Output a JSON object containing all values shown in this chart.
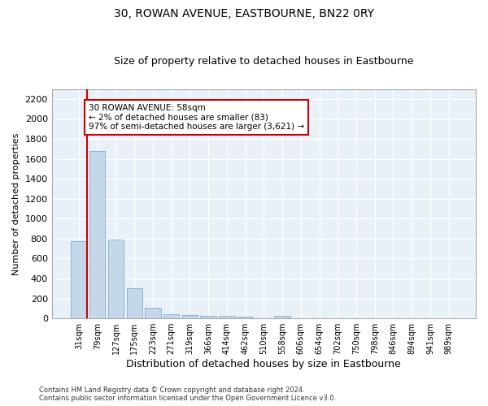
{
  "title": "30, ROWAN AVENUE, EASTBOURNE, BN22 0RY",
  "subtitle": "Size of property relative to detached houses in Eastbourne",
  "xlabel": "Distribution of detached houses by size in Eastbourne",
  "ylabel": "Number of detached properties",
  "categories": [
    "31sqm",
    "79sqm",
    "127sqm",
    "175sqm",
    "223sqm",
    "271sqm",
    "319sqm",
    "366sqm",
    "414sqm",
    "462sqm",
    "510sqm",
    "558sqm",
    "606sqm",
    "654sqm",
    "702sqm",
    "750sqm",
    "798sqm",
    "846sqm",
    "894sqm",
    "941sqm",
    "989sqm"
  ],
  "values": [
    775,
    1680,
    795,
    300,
    110,
    45,
    35,
    28,
    25,
    22,
    0,
    25,
    0,
    0,
    0,
    0,
    0,
    0,
    0,
    0,
    0
  ],
  "bar_color": "#c5d8ea",
  "bar_edgecolor": "#7aafd4",
  "ylim": [
    0,
    2300
  ],
  "yticks": [
    0,
    200,
    400,
    600,
    800,
    1000,
    1200,
    1400,
    1600,
    1800,
    2000,
    2200
  ],
  "vline_x": 0.42,
  "annotation_text": "30 ROWAN AVENUE: 58sqm\n← 2% of detached houses are smaller (83)\n97% of semi-detached houses are larger (3,621) →",
  "annotation_box_facecolor": "#ffffff",
  "annotation_box_edgecolor": "#cc0000",
  "vline_color": "#cc0000",
  "footnote": "Contains HM Land Registry data © Crown copyright and database right 2024.\nContains public sector information licensed under the Open Government Licence v3.0.",
  "fig_facecolor": "#ffffff",
  "ax_facecolor": "#e8f0f8",
  "grid_color": "#ffffff",
  "title_fontsize": 10,
  "subtitle_fontsize": 9,
  "ylabel_fontsize": 8,
  "xlabel_fontsize": 9
}
